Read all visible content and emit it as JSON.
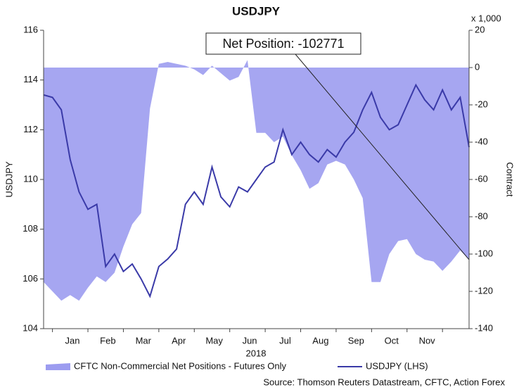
{
  "chart_data": {
    "type": "area_line",
    "title": "USDJPY",
    "annotation": "Net Position: -102771",
    "x_label": "2018",
    "y_label": "USDJPY",
    "y2_label": "Contract",
    "y2_unit_note": "x 1,000",
    "source": "Source: Thomson Reuters Datastream, CFTC, Action Forex",
    "categories": [
      null,
      null,
      null,
      "Jan",
      null,
      null,
      null,
      "Feb",
      null,
      null,
      null,
      "Mar",
      null,
      null,
      null,
      "Apr",
      null,
      null,
      null,
      "May",
      null,
      null,
      null,
      "Jun",
      null,
      null,
      null,
      "Jul",
      null,
      null,
      null,
      "Aug",
      null,
      null,
      null,
      "Sep",
      null,
      null,
      null,
      "Oct",
      null,
      null,
      null,
      "Nov",
      null,
      null,
      null,
      null,
      null
    ],
    "series": [
      {
        "name": "CFTC Non-Commercial Net Positions - Futures Only",
        "type": "area",
        "axis": "y2",
        "color": "#9c9cf0",
        "values": [
          -115,
          -120,
          -125,
          -122,
          -125,
          -118,
          -112,
          -115,
          -110,
          -96,
          -84,
          -78,
          -22,
          2,
          3,
          2,
          1,
          -1,
          -4,
          1,
          -3,
          -7,
          -5,
          4,
          -35,
          -35,
          -40,
          -37,
          -47,
          -55,
          -65,
          -62,
          -52,
          -50,
          -52,
          -60,
          -70,
          -115,
          -115,
          -100,
          -93,
          -92,
          -100,
          -103,
          -104,
          -109,
          -104,
          -98,
          -103
        ]
      },
      {
        "name": "USDJPY (LHS)",
        "type": "line",
        "axis": "y",
        "color": "#3a3aa8",
        "values": [
          113.4,
          113.3,
          112.8,
          110.8,
          109.5,
          108.8,
          109.0,
          106.5,
          107.0,
          106.3,
          106.6,
          106.0,
          105.3,
          106.5,
          106.8,
          107.2,
          109.0,
          109.5,
          109.0,
          110.5,
          109.3,
          108.9,
          109.7,
          109.5,
          110.0,
          110.5,
          110.7,
          112.0,
          111.0,
          111.5,
          111.0,
          110.7,
          111.2,
          110.9,
          111.5,
          111.9,
          112.8,
          113.5,
          112.5,
          112.0,
          112.2,
          113.0,
          113.8,
          113.2,
          112.8,
          113.6,
          112.8,
          113.3,
          111.3
        ]
      }
    ],
    "ylim": [
      104,
      116
    ],
    "yticks": [
      104,
      106,
      108,
      110,
      112,
      114,
      116
    ],
    "y2lim": [
      -140,
      20
    ],
    "y2ticks": [
      -140,
      -120,
      -100,
      -80,
      -60,
      -40,
      -20,
      0,
      20
    ],
    "grid": false
  }
}
